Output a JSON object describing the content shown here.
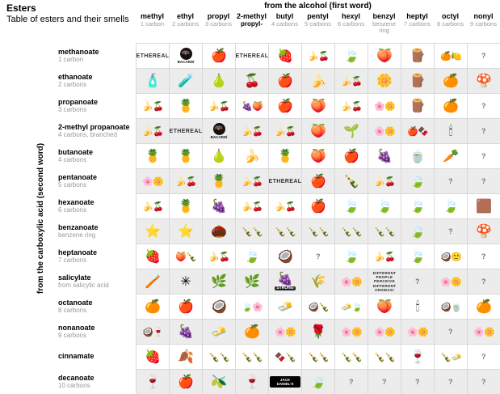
{
  "title": "Esters",
  "subtitle": "Table of esters and their smells",
  "top_axis_label": "from the alcohol (first word)",
  "side_axis_label": "from the carboxylic acid (second word)",
  "colors": {
    "stripe": "#ececec",
    "gridline": "#d9d9d9",
    "sublabel": "#999999"
  },
  "columns": [
    {
      "name": "methyl",
      "sub": "1 carbon"
    },
    {
      "name": "ethyl",
      "sub": "2 carbons"
    },
    {
      "name": "propyl",
      "sub": "3 carbons"
    },
    {
      "name": "2-methyl",
      "sub": "propyl-",
      "sub_bold": true
    },
    {
      "name": "butyl",
      "sub": "4 carbons"
    },
    {
      "name": "pentyl",
      "sub": "5 carbons"
    },
    {
      "name": "hexyl",
      "sub": "6 carbons"
    },
    {
      "name": "benzyl",
      "sub": "benzene ring"
    },
    {
      "name": "heptyl",
      "sub": "7 carbons"
    },
    {
      "name": "octyl",
      "sub": "8 carbons"
    },
    {
      "name": "nonyl",
      "sub": "9 carbons"
    }
  ],
  "rows": [
    {
      "acid": "methanoate",
      "sub": "1 carbon",
      "cells": [
        "ethereal",
        "rum",
        "apple",
        "ethereal",
        "raspberries",
        "fruit-mix",
        "leaf",
        "apricots",
        "log",
        "citrus",
        "unknown"
      ]
    },
    {
      "acid": "ethanoate",
      "sub": "2 carbons",
      "cells": [
        "glue-stick",
        "glue",
        "pears",
        "cherries",
        "apple",
        "banana",
        "fruit-mix",
        "jasmine",
        "log",
        "oranges",
        "mushroom"
      ]
    },
    {
      "acid": "propanoate",
      "sub": "3 carbons",
      "cells": [
        "fruit-mix",
        "pineapple",
        "fruit-mix",
        "plum-apricot",
        "apple",
        "apricots",
        "fruit-mix",
        "flowers",
        "log",
        "oranges",
        "unknown"
      ]
    },
    {
      "acid": "2-methyl propanoate",
      "sub": "4 carbons, branched",
      "cells": [
        "fruit-mix",
        "ethereal",
        "rum",
        "fruit-mix",
        "fruit-mix",
        "apricots",
        "grass",
        "flowers",
        "apple-cocoa",
        "candle",
        "unknown"
      ]
    },
    {
      "acid": "butanoate",
      "sub": "4 carbons",
      "cells": [
        "pineapple",
        "pineapple",
        "pears",
        "banana",
        "pineapple",
        "apricots",
        "apple-dough",
        "plums",
        "tea",
        "parsnip",
        "unknown"
      ]
    },
    {
      "acid": "pentanoate",
      "sub": "5 carbons",
      "cells": [
        "flowers",
        "fruit-mix",
        "pineapple",
        "fruit-mix",
        "ethereal",
        "apple",
        "brandy",
        "fruit-mix",
        "leaf",
        "unknown",
        "unknown"
      ]
    },
    {
      "acid": "hexanoate",
      "sub": "6 carbons",
      "cells": [
        "fruit-mix",
        "pineapple",
        "blackberries",
        "fruit-mix",
        "fruit-mix",
        "apple",
        "leaf",
        "leaf",
        "leaf",
        "leaf",
        "soil"
      ]
    },
    {
      "acid": "benzanoate",
      "sub": "benzene ring",
      "cells": [
        "ylang-ylang",
        "ylang-ylang",
        "dates-nuts",
        "bottles",
        "bottles",
        "bottles",
        "bottles",
        "bottles",
        "leaf",
        "unknown",
        "mushroom"
      ]
    },
    {
      "acid": "heptanoate",
      "sub": "7 carbons",
      "cells": [
        "berries",
        "apricot-brandy",
        "fruit-mix",
        "leaf",
        "coconut",
        "unknown",
        "leaf",
        "fruit-mix",
        "leaf",
        "coconut-smiley",
        "unknown"
      ]
    },
    {
      "acid": "salicylate",
      "sub": "from salicylic acid",
      "cells": [
        "toothpaste",
        "star-anise",
        "mint",
        "herbs",
        "strong-berries",
        "straw",
        "flowers",
        "perception-note",
        "unknown",
        "flowers",
        "unknown"
      ]
    },
    {
      "acid": "octanoate",
      "sub": "8 carbons",
      "cells": [
        "oranges",
        "apple",
        "coconut",
        "leaf-flowers",
        "butter",
        "coconut-brandy",
        "butter-leaf",
        "apricots",
        "candle",
        "coconut-oil",
        "oranges"
      ]
    },
    {
      "acid": "nonanoate",
      "sub": "9 carbons",
      "cells": [
        "coconut-wine",
        "grapes",
        "butter",
        "orange",
        "flowers",
        "rose",
        "flowers",
        "flowers",
        "flowers",
        "unknown",
        "flowers"
      ]
    },
    {
      "acid": "cinnamate",
      "sub": "",
      "cells": [
        "strawberry",
        "cinnamon",
        "bottles",
        "bottles",
        "cocoa-bottles",
        "bottles",
        "bottles",
        "bottles",
        "wine",
        "bottles-butter",
        "unknown"
      ]
    },
    {
      "acid": "decanoate",
      "sub": "10 carbons",
      "cells": [
        "wine",
        "apple",
        "olive-oil",
        "wine",
        "whiskey",
        "leaf",
        "unknown",
        "unknown",
        "unknown",
        "unknown",
        "unknown"
      ]
    }
  ],
  "items": {
    "ethereal": {
      "text": "ETHEREAL"
    },
    "unknown": {
      "text": "?",
      "style": "muted"
    },
    "perception-note": {
      "text": "DIFFERENT PEOPLE PERCEIVE DIFFERENT AROMAS!",
      "style": "note"
    },
    "rum": {
      "glyph": "🦇",
      "caption": "BACARDÍ",
      "style": "bacardi"
    },
    "whiskey": {
      "caption": "JACK DANIEL'S",
      "style": "jack"
    },
    "strong-berries": {
      "glyph": "🍇",
      "caption": "STRONG",
      "style": "strong"
    },
    "apple": {
      "glyph": "🍎"
    },
    "apple-dough": {
      "glyph": "🍎"
    },
    "apple-cocoa": {
      "glyph": "🍎🍫"
    },
    "pears": {
      "glyph": "🍐"
    },
    "cherries": {
      "glyph": "🍒"
    },
    "raspberries": {
      "glyph": "🍓"
    },
    "strawberry": {
      "glyph": "🍓"
    },
    "berries": {
      "glyph": "🍓"
    },
    "blackberries": {
      "glyph": "🍇"
    },
    "grapes": {
      "glyph": "🍇"
    },
    "plums": {
      "glyph": "🍇"
    },
    "plum-apricot": {
      "glyph": "🍇🍑"
    },
    "fruit-mix": {
      "glyph": "🍌🍒"
    },
    "banana": {
      "glyph": "🍌"
    },
    "pineapple": {
      "glyph": "🍍"
    },
    "apricots": {
      "glyph": "🍑"
    },
    "apricot-brandy": {
      "glyph": "🍑🍾"
    },
    "citrus": {
      "glyph": "🍊🍋"
    },
    "oranges": {
      "glyph": "🍊"
    },
    "orange": {
      "glyph": "🍊"
    },
    "leaf": {
      "glyph": "🍃"
    },
    "leaf-flowers": {
      "glyph": "🍃🌸"
    },
    "grass": {
      "glyph": "🌱"
    },
    "flowers": {
      "glyph": "🌸🌼"
    },
    "jasmine": {
      "glyph": "🌼"
    },
    "rose": {
      "glyph": "🌹"
    },
    "log": {
      "glyph": "🪵"
    },
    "mushroom": {
      "glyph": "🍄"
    },
    "soil": {
      "glyph": "🟫"
    },
    "glue-stick": {
      "glyph": "🧴"
    },
    "glue": {
      "glyph": "🧪"
    },
    "candle": {
      "glyph": "🕯"
    },
    "tea": {
      "glyph": "🍵"
    },
    "parsnip": {
      "glyph": "🥕"
    },
    "brandy": {
      "glyph": "🍾"
    },
    "bottles": {
      "glyph": "🍾🍾"
    },
    "cocoa-bottles": {
      "glyph": "🍫🍾"
    },
    "bottles-butter": {
      "glyph": "🍾🧈"
    },
    "ylang-ylang": {
      "glyph": "⭐"
    },
    "dates-nuts": {
      "glyph": "🌰"
    },
    "coconut": {
      "glyph": "🥥"
    },
    "coconut-smiley": {
      "glyph": "🥥🙂"
    },
    "coconut-brandy": {
      "glyph": "🥥🍾"
    },
    "coconut-oil": {
      "glyph": "🥥🍵"
    },
    "coconut-wine": {
      "glyph": "🥥🍷"
    },
    "toothpaste": {
      "glyph": "🪥"
    },
    "star-anise": {
      "glyph": "✳"
    },
    "mint": {
      "glyph": "🌿"
    },
    "herbs": {
      "glyph": "🌿"
    },
    "straw": {
      "glyph": "🌾"
    },
    "butter": {
      "glyph": "🧈"
    },
    "butter-leaf": {
      "glyph": "🧈🍃"
    },
    "cinnamon": {
      "glyph": "🍂"
    },
    "wine": {
      "glyph": "🍷"
    },
    "olive-oil": {
      "glyph": "🫒"
    }
  }
}
